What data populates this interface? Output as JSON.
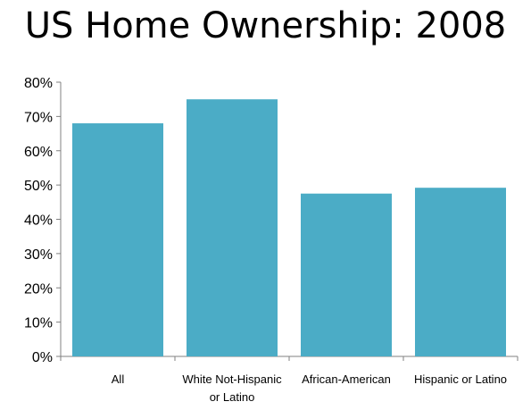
{
  "title": "US Home Ownership: 2008",
  "colors": {
    "bar": "#4BACC6",
    "axis": "#808080",
    "text": "#000000"
  },
  "chart_data": {
    "type": "bar",
    "title": "US Home Ownership: 2008",
    "xlabel": "",
    "ylabel": "",
    "categories": [
      [
        "All"
      ],
      [
        "White Not-Hispanic",
        "or Latino"
      ],
      [
        "African-American"
      ],
      [
        "Hispanic or Latino"
      ]
    ],
    "values": [
      68,
      75,
      47.5,
      49.2
    ],
    "ylim": [
      0,
      80
    ],
    "yticks": [
      "0%",
      "10%",
      "20%",
      "30%",
      "40%",
      "50%",
      "60%",
      "70%",
      "80%"
    ],
    "grid": false,
    "legend": "none"
  }
}
